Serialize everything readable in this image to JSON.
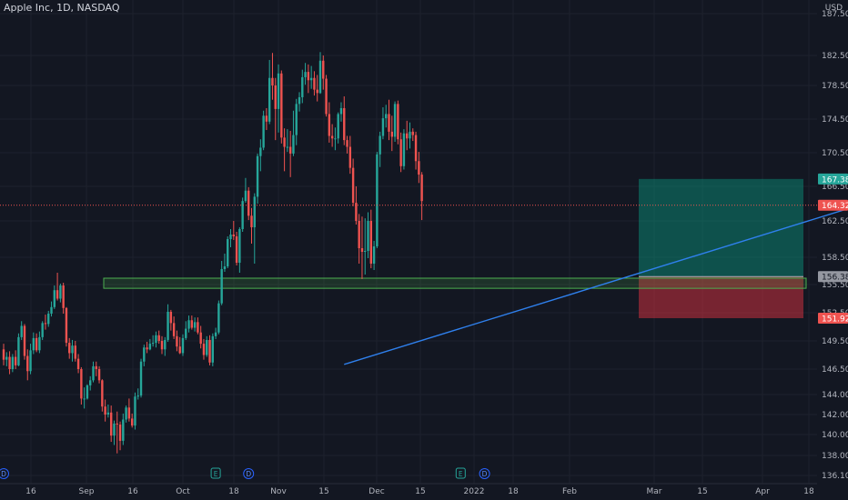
{
  "header": {
    "title": "Apple Inc, 1D, NASDAQ",
    "currency": "USD"
  },
  "chart_data": {
    "type": "candlestick",
    "ylim": [
      135.5,
      187.5
    ],
    "y_ticks": [
      187.5,
      182.5,
      178.5,
      174.5,
      170.5,
      166.5,
      162.5,
      158.5,
      155.5,
      152.5,
      149.5,
      146.5,
      144.0,
      142.0,
      140.0,
      138.0,
      136.1
    ],
    "x_ticks": [
      "16",
      "Sep",
      "16",
      "Oct",
      "18",
      "Nov",
      "15",
      "Dec",
      "15",
      "2022",
      "18",
      "Feb",
      "Mar",
      "15",
      "Apr",
      "18"
    ],
    "price_labels": [
      {
        "value": 167.38,
        "text": "167.38",
        "color": "#26a69a"
      },
      {
        "value": 164.32,
        "text": "164.32",
        "color": "#ef5350"
      },
      {
        "value": 156.38,
        "text": "156.38",
        "color": "#9598a1"
      },
      {
        "value": 151.92,
        "text": "151.92",
        "color": "#ef5350"
      }
    ],
    "last_price": 164.32,
    "position": {
      "entry": 156.38,
      "target": 167.38,
      "stop": 151.92
    },
    "zone": {
      "top": 156.2,
      "bottom": 155.1
    },
    "trendline": {
      "from_day": 114,
      "from_price": 147.0,
      "to_day": 210,
      "to_price": 163.5
    },
    "events": [
      {
        "day": 0,
        "label": "D"
      },
      {
        "day": 71,
        "label": "E"
      },
      {
        "day": 82,
        "label": "D"
      },
      {
        "day": 153,
        "label": "E"
      },
      {
        "day": 161,
        "label": "D"
      }
    ],
    "candles": [
      [
        148.6,
        147.5,
        149.2,
        146.9
      ],
      [
        147.5,
        147.8,
        148.3,
        146.8
      ],
      [
        147.8,
        146.5,
        148.4,
        146.0
      ],
      [
        146.5,
        147.8,
        148.1,
        146.2
      ],
      [
        147.8,
        146.9,
        148.5,
        146.5
      ],
      [
        146.9,
        149.9,
        150.3,
        146.8
      ],
      [
        149.9,
        151.1,
        151.6,
        149.6
      ],
      [
        151.1,
        147.9,
        151.3,
        147.5
      ],
      [
        147.9,
        146.3,
        148.6,
        145.4
      ],
      [
        146.3,
        148.5,
        149.2,
        146.0
      ],
      [
        148.5,
        149.8,
        150.4,
        148.1
      ],
      [
        149.8,
        148.5,
        150.3,
        148.3
      ],
      [
        148.5,
        149.9,
        150.5,
        148.2
      ],
      [
        149.9,
        151.4,
        151.6,
        149.6
      ],
      [
        151.4,
        151.3,
        152.3,
        150.7
      ],
      [
        151.3,
        152.4,
        152.7,
        151.0
      ],
      [
        152.4,
        153.1,
        153.7,
        152.1
      ],
      [
        153.1,
        154.9,
        155.4,
        152.9
      ],
      [
        154.9,
        154.0,
        156.8,
        153.8
      ],
      [
        154.0,
        155.4,
        155.6,
        153.6
      ],
      [
        155.4,
        153.0,
        155.7,
        152.4
      ],
      [
        153.0,
        149.3,
        153.1,
        148.9
      ],
      [
        149.3,
        148.2,
        149.8,
        147.6
      ],
      [
        148.2,
        149.0,
        149.6,
        147.3
      ],
      [
        149.0,
        147.6,
        149.5,
        147.3
      ],
      [
        147.6,
        146.5,
        148.1,
        146.1
      ],
      [
        146.5,
        143.6,
        146.7,
        143.0
      ],
      [
        143.6,
        143.6,
        144.7,
        142.6
      ],
      [
        143.6,
        144.9,
        145.0,
        143.5
      ],
      [
        144.9,
        145.4,
        145.8,
        144.4
      ],
      [
        145.4,
        146.8,
        147.3,
        145.2
      ],
      [
        146.8,
        146.5,
        147.3,
        145.8
      ],
      [
        146.5,
        145.4,
        146.8,
        145.1
      ],
      [
        145.4,
        142.8,
        145.5,
        142.3
      ],
      [
        142.8,
        142.0,
        143.5,
        141.3
      ],
      [
        142.0,
        142.2,
        143.0,
        141.7
      ],
      [
        142.2,
        139.9,
        142.9,
        139.3
      ],
      [
        139.9,
        141.1,
        141.4,
        139.0
      ],
      [
        141.1,
        141.0,
        142.3,
        138.2
      ],
      [
        141.0,
        139.4,
        141.3,
        138.5
      ],
      [
        139.4,
        141.5,
        142.1,
        139.0
      ],
      [
        141.5,
        142.7,
        142.9,
        141.2
      ],
      [
        142.7,
        141.6,
        143.6,
        141.3
      ],
      [
        141.6,
        140.9,
        142.1,
        140.7
      ],
      [
        140.9,
        143.8,
        144.2,
        140.5
      ],
      [
        143.8,
        143.9,
        144.6,
        143.5
      ],
      [
        143.9,
        147.3,
        147.6,
        143.7
      ],
      [
        147.3,
        148.8,
        149.1,
        146.8
      ],
      [
        148.8,
        148.6,
        149.4,
        148.2
      ],
      [
        148.6,
        149.2,
        149.7,
        148.5
      ],
      [
        149.2,
        149.3,
        150.1,
        148.9
      ],
      [
        149.3,
        150.1,
        150.5,
        148.8
      ],
      [
        150.1,
        149.5,
        150.6,
        149.2
      ],
      [
        149.5,
        148.6,
        150.0,
        148.1
      ],
      [
        148.6,
        149.6,
        149.9,
        147.9
      ],
      [
        149.6,
        152.6,
        153.4,
        149.4
      ],
      [
        152.6,
        151.4,
        152.8,
        150.6
      ],
      [
        151.4,
        150.0,
        152.1,
        149.7
      ],
      [
        150.0,
        148.9,
        150.6,
        148.4
      ],
      [
        148.9,
        148.2,
        149.9,
        148.1
      ],
      [
        148.2,
        149.8,
        150.2,
        147.9
      ],
      [
        149.8,
        150.8,
        151.6,
        149.6
      ],
      [
        150.8,
        151.7,
        152.2,
        150.4
      ],
      [
        151.7,
        150.9,
        152.2,
        150.7
      ],
      [
        150.9,
        151.5,
        152.0,
        150.5
      ],
      [
        151.5,
        150.4,
        152.0,
        150.2
      ],
      [
        150.4,
        149.2,
        151.1,
        148.7
      ],
      [
        149.2,
        148.0,
        149.7,
        147.5
      ],
      [
        148.0,
        149.6,
        150.0,
        147.8
      ],
      [
        149.6,
        147.2,
        150.1,
        146.9
      ],
      [
        147.2,
        150.0,
        150.3,
        146.8
      ],
      [
        150.0,
        150.4,
        150.9,
        149.7
      ],
      [
        150.4,
        153.5,
        153.8,
        150.2
      ],
      [
        153.5,
        157.2,
        158.1,
        153.3
      ],
      [
        157.2,
        157.5,
        158.9,
        156.9
      ],
      [
        157.5,
        160.5,
        160.8,
        157.3
      ],
      [
        160.5,
        161.0,
        161.6,
        159.6
      ],
      [
        161.0,
        160.8,
        162.5,
        160.4
      ],
      [
        160.8,
        157.9,
        161.3,
        157.6
      ],
      [
        157.9,
        161.6,
        161.8,
        156.8
      ],
      [
        161.6,
        164.8,
        165.2,
        161.3
      ],
      [
        164.8,
        166.0,
        167.5,
        164.6
      ],
      [
        166.0,
        163.1,
        166.4,
        162.6
      ],
      [
        163.1,
        161.8,
        164.0,
        160.0
      ],
      [
        161.8,
        165.3,
        165.7,
        157.8
      ],
      [
        165.3,
        170.1,
        170.4,
        164.5
      ],
      [
        170.1,
        171.1,
        172.1,
        168.3
      ],
      [
        171.1,
        174.9,
        175.5,
        170.8
      ],
      [
        174.9,
        174.2,
        175.8,
        173.2
      ],
      [
        174.2,
        179.5,
        181.9,
        173.9
      ],
      [
        179.5,
        178.5,
        182.8,
        176.8
      ],
      [
        178.5,
        175.7,
        179.5,
        172.0
      ],
      [
        175.7,
        180.1,
        181.3,
        172.9
      ],
      [
        180.1,
        172.3,
        180.5,
        171.6
      ],
      [
        172.3,
        171.2,
        173.4,
        168.3
      ],
      [
        171.2,
        171.2,
        173.3,
        170.6
      ],
      [
        171.2,
        170.4,
        173.1,
        167.6
      ],
      [
        170.4,
        172.6,
        175.5,
        170.1
      ],
      [
        172.6,
        176.3,
        176.9,
        171.4
      ],
      [
        176.3,
        177.1,
        177.7,
        175.4
      ],
      [
        177.1,
        179.6,
        180.6,
        176.4
      ],
      [
        179.6,
        180.3,
        181.5,
        178.6
      ],
      [
        180.3,
        179.2,
        181.3,
        177.6
      ],
      [
        179.2,
        179.5,
        181.1,
        178.1
      ],
      [
        179.5,
        178.0,
        180.4,
        177.3
      ],
      [
        178.0,
        177.6,
        179.9,
        176.6
      ],
      [
        177.6,
        181.8,
        182.9,
        177.5
      ],
      [
        181.8,
        179.4,
        182.5,
        178.0
      ],
      [
        179.4,
        175.1,
        179.9,
        174.8
      ],
      [
        175.1,
        172.5,
        176.5,
        171.7
      ],
      [
        172.5,
        172.2,
        173.9,
        171.2
      ],
      [
        172.2,
        172.2,
        173.5,
        170.8
      ],
      [
        172.2,
        175.1,
        175.3,
        171.6
      ],
      [
        175.1,
        175.8,
        176.5,
        174.2
      ],
      [
        175.8,
        172.0,
        177.2,
        171.4
      ],
      [
        172.0,
        171.2,
        172.5,
        170.4
      ],
      [
        171.2,
        168.7,
        172.5,
        168.0
      ],
      [
        168.7,
        164.6,
        169.8,
        164.2
      ],
      [
        164.6,
        162.5,
        166.5,
        162.1
      ],
      [
        162.5,
        159.5,
        163.3,
        157.8
      ],
      [
        159.5,
        159.1,
        163.0,
        156.1
      ],
      [
        159.1,
        159.2,
        162.8,
        156.6
      ],
      [
        159.2,
        162.5,
        163.5,
        158.4
      ],
      [
        162.5,
        157.8,
        163.8,
        157.3
      ],
      [
        157.8,
        159.7,
        160.3,
        157.1
      ],
      [
        159.7,
        170.3,
        170.6,
        159.5
      ],
      [
        170.3,
        172.5,
        173.0,
        168.8
      ],
      [
        172.5,
        174.6,
        175.9,
        172.1
      ],
      [
        174.6,
        175.1,
        176.2,
        173.5
      ],
      [
        175.1,
        173.0,
        176.8,
        172.0
      ],
      [
        173.0,
        172.4,
        174.9,
        170.7
      ],
      [
        172.4,
        176.3,
        176.6,
        171.8
      ],
      [
        176.3,
        172.1,
        176.7,
        171.5
      ],
      [
        172.1,
        168.9,
        172.9,
        168.2
      ],
      [
        168.9,
        172.8,
        173.3,
        168.5
      ],
      [
        172.8,
        172.2,
        174.3,
        170.8
      ],
      [
        172.2,
        173.0,
        174.1,
        171.0
      ],
      [
        173.0,
        172.6,
        173.4,
        171.9
      ],
      [
        172.6,
        169.5,
        173.0,
        168.5
      ],
      [
        169.5,
        167.9,
        170.6,
        166.9
      ],
      [
        167.9,
        164.8,
        168.2,
        162.6
      ]
    ]
  }
}
